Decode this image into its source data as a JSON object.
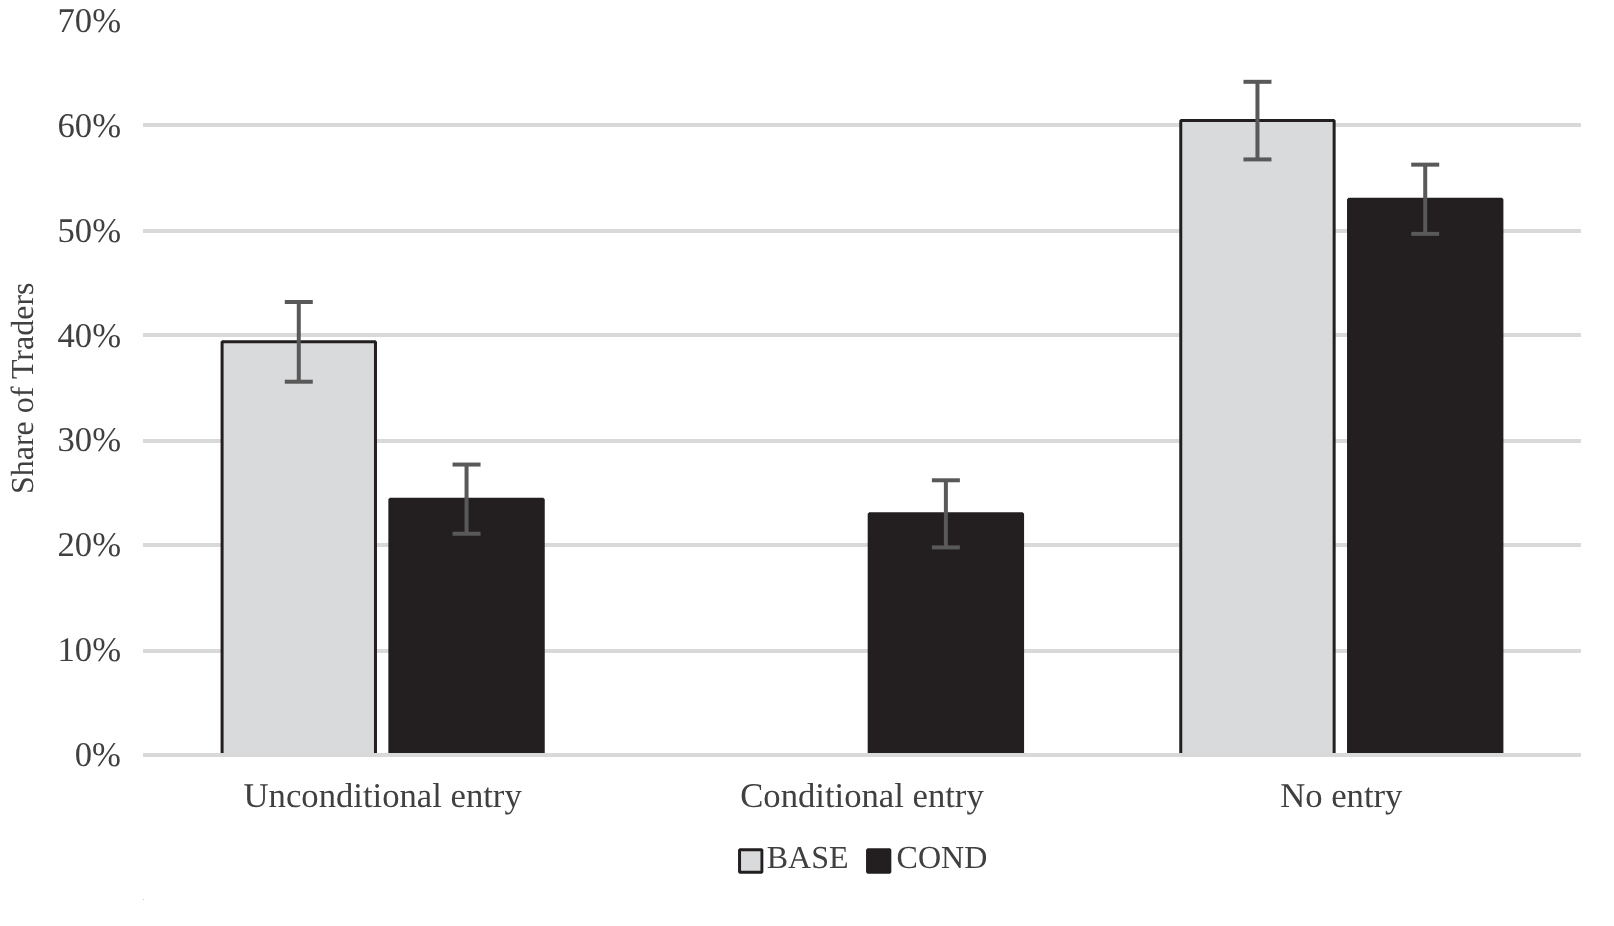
{
  "chart_data": {
    "type": "bar",
    "ylabel": "Share of Traders",
    "categories": [
      "Unconditional entry",
      "Conditional entry",
      "No entry"
    ],
    "series": [
      {
        "name": "BASE",
        "color": "#d9dadc",
        "values": [
          39.4,
          null,
          60.5
        ],
        "errors": [
          3.8,
          null,
          3.7
        ]
      },
      {
        "name": "COND",
        "color": "#231f20",
        "values": [
          24.4,
          23.0,
          53.0
        ],
        "errors": [
          3.3,
          3.2,
          3.3
        ]
      }
    ],
    "ylim": [
      0,
      70
    ],
    "yticks": [
      {
        "value": 0,
        "label": "0%"
      },
      {
        "value": 10,
        "label": "10%"
      },
      {
        "value": 20,
        "label": "20%"
      },
      {
        "value": 30,
        "label": "30%"
      },
      {
        "value": 40,
        "label": "40%"
      },
      {
        "value": 50,
        "label": "50%"
      },
      {
        "value": 60,
        "label": "60%"
      },
      {
        "value": 70,
        "label": "70%"
      }
    ],
    "grid": "y",
    "legend": "bottom"
  }
}
